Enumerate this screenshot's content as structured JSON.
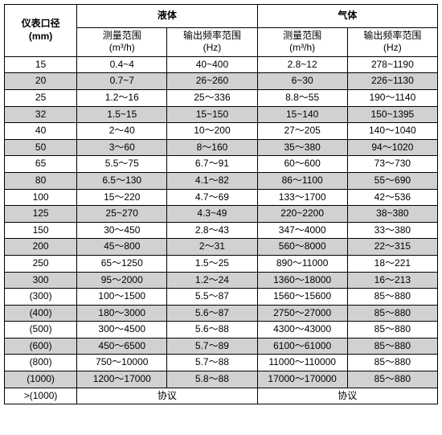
{
  "header": {
    "diameter_label": "仪表口径",
    "diameter_unit": "(mm)",
    "liquid_label": "液体",
    "gas_label": "气体",
    "range_label": "测量范围",
    "range_unit": "(m³/h)",
    "freq_label": "输出频率范围",
    "freq_unit": "(Hz)"
  },
  "rows": [
    {
      "d": "15",
      "lr": "0.4~4",
      "lf": "40~400",
      "gr": "2.8~12",
      "gf": "278~1190",
      "alt": false
    },
    {
      "d": "20",
      "lr": "0.7~7",
      "lf": "26~260",
      "gr": "6~30",
      "gf": "226~1130",
      "alt": true
    },
    {
      "d": "25",
      "lr": "1.2～16",
      "lf": "25～336",
      "gr": "8.8～55",
      "gf": "190～1140",
      "alt": false
    },
    {
      "d": "32",
      "lr": "1.5~15",
      "lf": "15~150",
      "gr": "15~140",
      "gf": "150~1395",
      "alt": true
    },
    {
      "d": "40",
      "lr": "2～40",
      "lf": "10～200",
      "gr": "27～205",
      "gf": "140～1040",
      "alt": false
    },
    {
      "d": "50",
      "lr": "3～60",
      "lf": "8～160",
      "gr": "35～380",
      "gf": "94～1020",
      "alt": true
    },
    {
      "d": "65",
      "lr": "5.5～75",
      "lf": "6.7～91",
      "gr": "60～600",
      "gf": "73～730",
      "alt": false
    },
    {
      "d": "80",
      "lr": "6.5～130",
      "lf": "4.1～82",
      "gr": "86～1100",
      "gf": "55～690",
      "alt": true
    },
    {
      "d": "100",
      "lr": "15～220",
      "lf": "4.7～69",
      "gr": "133～1700",
      "gf": "42～536",
      "alt": false
    },
    {
      "d": "125",
      "lr": "25~270",
      "lf": "4.3~49",
      "gr": "220~2200",
      "gf": "38~380",
      "alt": true
    },
    {
      "d": "150",
      "lr": "30～450",
      "lf": "2.8～43",
      "gr": "347～4000",
      "gf": "33～380",
      "alt": false
    },
    {
      "d": "200",
      "lr": "45～800",
      "lf": "2～31",
      "gr": "560～8000",
      "gf": "22～315",
      "alt": true
    },
    {
      "d": "250",
      "lr": "65～1250",
      "lf": "1.5～25",
      "gr": "890～11000",
      "gf": "18～221",
      "alt": false
    },
    {
      "d": "300",
      "lr": "95～2000",
      "lf": "1.2～24",
      "gr": "1360～18000",
      "gf": "16～213",
      "alt": true
    },
    {
      "d": "(300)",
      "lr": "100～1500",
      "lf": "5.5～87",
      "gr": "1560～15600",
      "gf": "85～880",
      "alt": false
    },
    {
      "d": "(400)",
      "lr": "180～3000",
      "lf": "5.6～87",
      "gr": "2750～27000",
      "gf": "85～880",
      "alt": true
    },
    {
      "d": "(500)",
      "lr": "300～4500",
      "lf": "5.6～88",
      "gr": "4300～43000",
      "gf": "85～880",
      "alt": false
    },
    {
      "d": "(600)",
      "lr": "450～6500",
      "lf": "5.7～89",
      "gr": "6100～61000",
      "gf": "85～880",
      "alt": true
    },
    {
      "d": "(800)",
      "lr": "750～10000",
      "lf": "5.7～88",
      "gr": "11000～110000",
      "gf": "85～880",
      "alt": false
    },
    {
      "d": "(1000)",
      "lr": "1200～17000",
      "lf": "5.8～88",
      "gr": "17000～170000",
      "gf": "85～880",
      "alt": true
    },
    {
      "d": ">(1000)",
      "lr": "协议",
      "lf": "",
      "gr": "协议",
      "gf": "",
      "alt": false,
      "merge": true
    }
  ],
  "colors": {
    "alt_bg": "#d1d1d1",
    "border": "#000000",
    "bg": "#ffffff"
  }
}
